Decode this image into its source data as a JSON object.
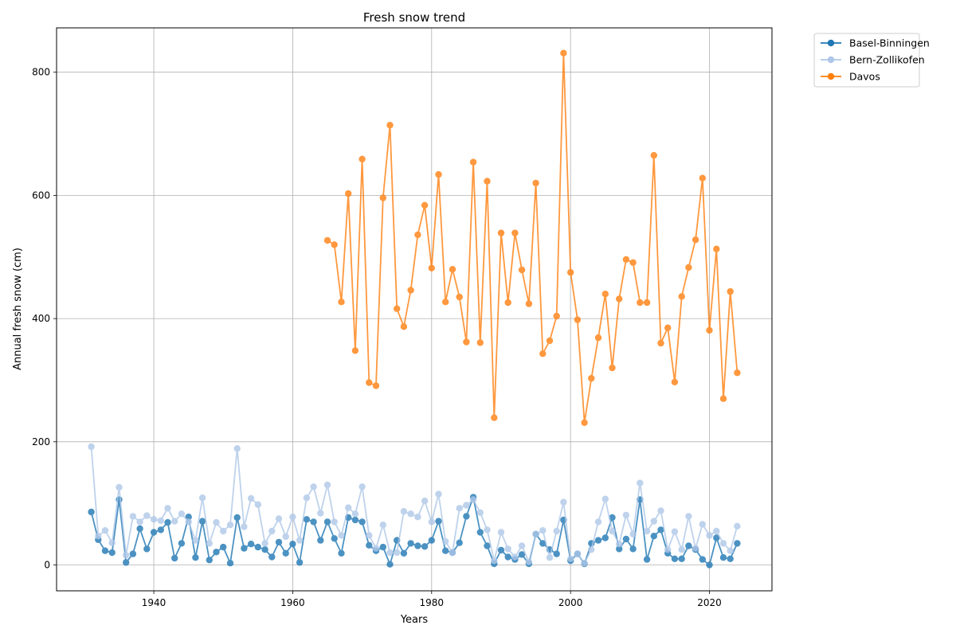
{
  "chart_data": {
    "type": "line",
    "title": "Fresh snow trend",
    "xlabel": "Years",
    "ylabel": "Annual fresh snow (cm)",
    "xlim": [
      1926,
      2029
    ],
    "ylim": [
      -42,
      872
    ],
    "x_ticks": [
      1940,
      1960,
      1980,
      2000,
      2020
    ],
    "y_ticks": [
      0,
      200,
      400,
      600,
      800
    ],
    "grid": true,
    "legend_position": "outside-top-right",
    "series": [
      {
        "name": "Basel-Binningen",
        "color": "#1f77b4",
        "start_year": 1931,
        "values": [
          86,
          41,
          23,
          20,
          106,
          4,
          18,
          59,
          26,
          53,
          57,
          69,
          11,
          35,
          78,
          12,
          71,
          8,
          21,
          29,
          3,
          77,
          27,
          34,
          29,
          25,
          13,
          37,
          19,
          34,
          4,
          74,
          70,
          40,
          70,
          43,
          19,
          77,
          73,
          70,
          32,
          23,
          29,
          1,
          40,
          19,
          35,
          31,
          30,
          40,
          71,
          23,
          20,
          36,
          79,
          110,
          53,
          31,
          2,
          24,
          13,
          9,
          17,
          2,
          50,
          35,
          25,
          18,
          73,
          7,
          18,
          2,
          35,
          40,
          44,
          77,
          26,
          42,
          26,
          106,
          9,
          47,
          57,
          19,
          10,
          10,
          31,
          25,
          9,
          0,
          44,
          12,
          10,
          35
        ]
      },
      {
        "name": "Bern-Zollikofen",
        "color": "#aec7e8",
        "start_year": 1931,
        "values": [
          192,
          47,
          56,
          36,
          126,
          16,
          79,
          70,
          80,
          74,
          72,
          92,
          71,
          83,
          70,
          40,
          109,
          35,
          69,
          55,
          65,
          189,
          62,
          108,
          98,
          35,
          55,
          75,
          46,
          78,
          40,
          109,
          127,
          84,
          130,
          70,
          48,
          93,
          83,
          127,
          48,
          27,
          65,
          20,
          20,
          87,
          83,
          78,
          104,
          70,
          115,
          38,
          20,
          92,
          97,
          106,
          85,
          57,
          7,
          53,
          26,
          13,
          31,
          5,
          50,
          56,
          12,
          55,
          102,
          10,
          18,
          3,
          25,
          70,
          107,
          55,
          34,
          81,
          50,
          133,
          55,
          71,
          88,
          25,
          54,
          25,
          79,
          27,
          66,
          48,
          55,
          35,
          23,
          63
        ]
      },
      {
        "name": "Davos",
        "color": "#ff7f0e",
        "start_year": 1965,
        "values": [
          527,
          520,
          427,
          603,
          348,
          659,
          296,
          291,
          596,
          714,
          416,
          387,
          446,
          536,
          584,
          482,
          634,
          427,
          480,
          435,
          362,
          654,
          361,
          623,
          239,
          539,
          426,
          539,
          479,
          424,
          620,
          343,
          364,
          404,
          831,
          475,
          398,
          231,
          303,
          369,
          440,
          320,
          432,
          496,
          491,
          426,
          426,
          665,
          360,
          385,
          297,
          436,
          483,
          528,
          628,
          381,
          513,
          270,
          444,
          312
        ]
      }
    ]
  }
}
